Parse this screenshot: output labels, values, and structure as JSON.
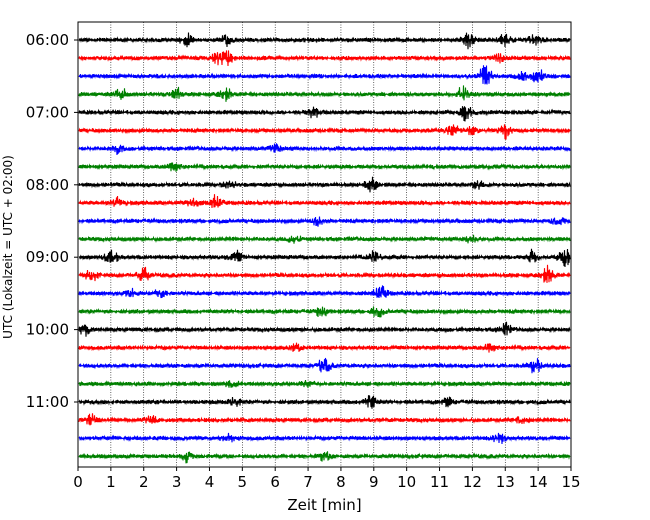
{
  "chart_data": {
    "type": "line",
    "title": "",
    "xlabel": "Zeit  [min]",
    "ylabel": "UTC (Lokalzeit = UTC + 02:00)",
    "xlim": [
      0,
      15
    ],
    "x_ticks": [
      "0",
      "1",
      "2",
      "3",
      "4",
      "5",
      "6",
      "7",
      "8",
      "9",
      "10",
      "11",
      "12",
      "13",
      "14",
      "15"
    ],
    "y_ticks": [
      "06:00",
      "07:00",
      "08:00",
      "09:00",
      "10:00",
      "11:00"
    ],
    "grid": "vertical dotted",
    "legend": "none",
    "series_colors": [
      "#000000",
      "#ff0000",
      "#0000ff",
      "#008000"
    ],
    "traces": [
      {
        "start": "06:00",
        "color": "#000000",
        "events": [
          [
            3.3,
            1.8
          ],
          [
            4.5,
            1.2
          ],
          [
            11.9,
            2.2
          ],
          [
            13.0,
            1.5
          ],
          [
            13.9,
            1.4
          ]
        ]
      },
      {
        "start": "06:15",
        "color": "#ff0000",
        "events": [
          [
            4.5,
            1.8
          ],
          [
            4.2,
            1.2
          ],
          [
            12.8,
            1.1
          ]
        ]
      },
      {
        "start": "06:30",
        "color": "#0000ff",
        "events": [
          [
            12.4,
            2.8
          ],
          [
            14.0,
            1.8
          ],
          [
            13.5,
            1.2
          ]
        ]
      },
      {
        "start": "06:45",
        "color": "#008000",
        "events": [
          [
            1.3,
            1.4
          ],
          [
            3.0,
            1.8
          ],
          [
            4.5,
            1.6
          ],
          [
            11.7,
            1.6
          ]
        ]
      },
      {
        "start": "07:00",
        "color": "#000000",
        "events": [
          [
            7.2,
            1.2
          ],
          [
            11.8,
            1.8
          ]
        ]
      },
      {
        "start": "07:15",
        "color": "#ff0000",
        "events": [
          [
            11.4,
            1.6
          ],
          [
            13.0,
            1.8
          ],
          [
            12.0,
            1.2
          ]
        ]
      },
      {
        "start": "07:30",
        "color": "#0000ff",
        "events": [
          [
            1.2,
            1.1
          ],
          [
            6.0,
            1.0
          ]
        ]
      },
      {
        "start": "07:45",
        "color": "#008000",
        "events": [
          [
            2.9,
            1.0
          ]
        ]
      },
      {
        "start": "08:00",
        "color": "#000000",
        "events": [
          [
            8.9,
            1.8
          ],
          [
            4.6,
            1.1
          ],
          [
            12.2,
            1.2
          ]
        ]
      },
      {
        "start": "08:15",
        "color": "#ff0000",
        "events": [
          [
            1.2,
            1.4
          ],
          [
            4.2,
            1.8
          ],
          [
            3.5,
            1.2
          ]
        ]
      },
      {
        "start": "08:30",
        "color": "#0000ff",
        "events": [
          [
            7.3,
            1.3
          ],
          [
            14.6,
            1.0
          ]
        ]
      },
      {
        "start": "08:45",
        "color": "#008000",
        "events": [
          [
            6.6,
            1.0
          ],
          [
            12.0,
            1.0
          ]
        ]
      },
      {
        "start": "09:00",
        "color": "#000000",
        "events": [
          [
            1.0,
            2.0
          ],
          [
            4.8,
            1.6
          ],
          [
            9.0,
            1.5
          ],
          [
            13.8,
            1.6
          ],
          [
            14.8,
            2.2
          ]
        ]
      },
      {
        "start": "09:15",
        "color": "#ff0000",
        "events": [
          [
            0.4,
            1.4
          ],
          [
            2.0,
            2.0
          ],
          [
            14.3,
            2.4
          ]
        ]
      },
      {
        "start": "09:30",
        "color": "#0000ff",
        "events": [
          [
            9.2,
            2.0
          ],
          [
            1.6,
            1.2
          ],
          [
            2.5,
            1.2
          ]
        ]
      },
      {
        "start": "09:45",
        "color": "#008000",
        "events": [
          [
            7.4,
            1.2
          ],
          [
            9.1,
            1.4
          ]
        ]
      },
      {
        "start": "10:00",
        "color": "#000000",
        "events": [
          [
            0.2,
            1.3
          ],
          [
            13.0,
            1.5
          ]
        ]
      },
      {
        "start": "10:15",
        "color": "#ff0000",
        "events": [
          [
            6.6,
            1.1
          ],
          [
            12.5,
            1.0
          ]
        ]
      },
      {
        "start": "10:30",
        "color": "#0000ff",
        "events": [
          [
            7.5,
            1.8
          ],
          [
            13.9,
            2.0
          ]
        ]
      },
      {
        "start": "10:45",
        "color": "#008000",
        "events": [
          [
            4.7,
            1.1
          ],
          [
            7.0,
            1.0
          ]
        ]
      },
      {
        "start": "11:00",
        "color": "#000000",
        "events": [
          [
            8.9,
            1.8
          ],
          [
            4.8,
            1.1
          ],
          [
            11.2,
            1.1
          ]
        ]
      },
      {
        "start": "11:15",
        "color": "#ff0000",
        "events": [
          [
            0.4,
            1.4
          ],
          [
            2.2,
            1.2
          ],
          [
            13.5,
            1.1
          ]
        ]
      },
      {
        "start": "11:30",
        "color": "#0000ff",
        "events": [
          [
            4.6,
            1.3
          ],
          [
            12.8,
            1.2
          ]
        ]
      },
      {
        "start": "11:45",
        "color": "#008000",
        "events": [
          [
            3.3,
            1.2
          ],
          [
            7.5,
            1.1
          ]
        ]
      }
    ]
  }
}
